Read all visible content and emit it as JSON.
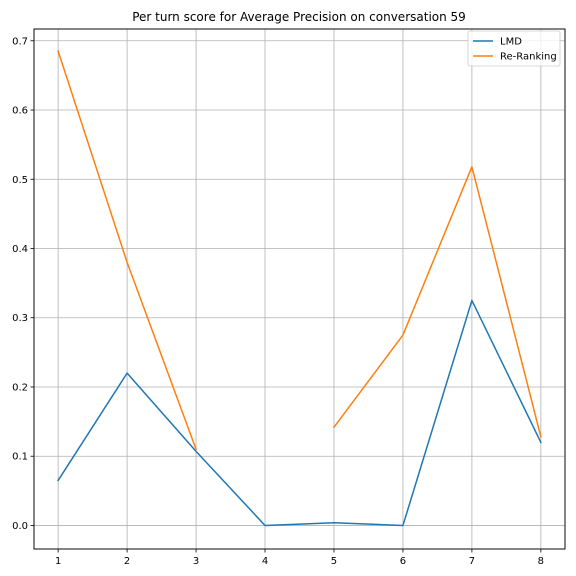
{
  "chart_data": {
    "type": "line",
    "title": "Per turn score for Average Precision on conversation 59",
    "xlabel": "",
    "ylabel": "",
    "x": [
      1,
      2,
      3,
      4,
      5,
      6,
      7,
      8
    ],
    "xlim": [
      0.65,
      8.35
    ],
    "ylim": [
      -0.034,
      0.717
    ],
    "xticks": [
      1,
      2,
      3,
      4,
      5,
      6,
      7,
      8
    ],
    "yticks": [
      0.0,
      0.1,
      0.2,
      0.3,
      0.4,
      0.5,
      0.6,
      0.7
    ],
    "ytick_labels": [
      "0.0",
      "0.1",
      "0.2",
      "0.3",
      "0.4",
      "0.5",
      "0.6",
      "0.7"
    ],
    "grid": true,
    "legend_position": "top-right",
    "series": [
      {
        "name": "LMD",
        "color": "#1f77b4",
        "values": [
          0.065,
          0.22,
          0.107,
          0.0,
          0.004,
          0.0,
          0.325,
          0.12
        ]
      },
      {
        "name": "Re-Ranking",
        "color": "#ff7f0e",
        "values": [
          0.685,
          0.38,
          0.11,
          null,
          0.142,
          0.275,
          0.518,
          0.128
        ]
      }
    ]
  }
}
